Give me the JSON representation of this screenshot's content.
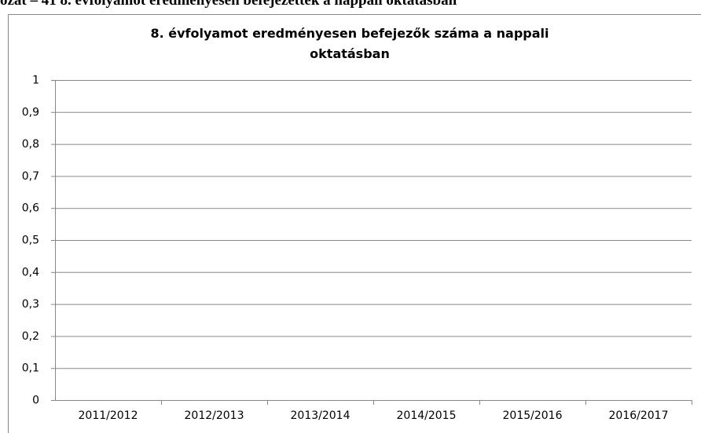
{
  "caption": "ozat – 41 8. évfolyamot eredményesen befejezettek a nappali oktatásban",
  "chart_data": {
    "type": "bar",
    "title": "8. évfolyamot eredményesen befejezők száma  a nappali oktatásban",
    "categories": [
      "2011/2012",
      "2012/2013",
      "2013/2014",
      "2014/2015",
      "2015/2016",
      "2016/2017"
    ],
    "ylim": [
      0,
      1
    ],
    "yticks": [
      0,
      {
        "value": 0.1,
        "label": "0,1"
      },
      {
        "value": 0.2,
        "label": "0,2"
      },
      {
        "value": 0.3,
        "label": "0,3"
      },
      {
        "value": 0.4,
        "label": "0,4"
      },
      {
        "value": 0.5,
        "label": "0,5"
      },
      {
        "value": 0.6,
        "label": "0,6"
      },
      {
        "value": 0.7,
        "label": "0,7"
      },
      {
        "value": 0.8,
        "label": "0,8"
      },
      {
        "value": 0.9,
        "label": "0,9"
      },
      1
    ],
    "grid": true
  }
}
